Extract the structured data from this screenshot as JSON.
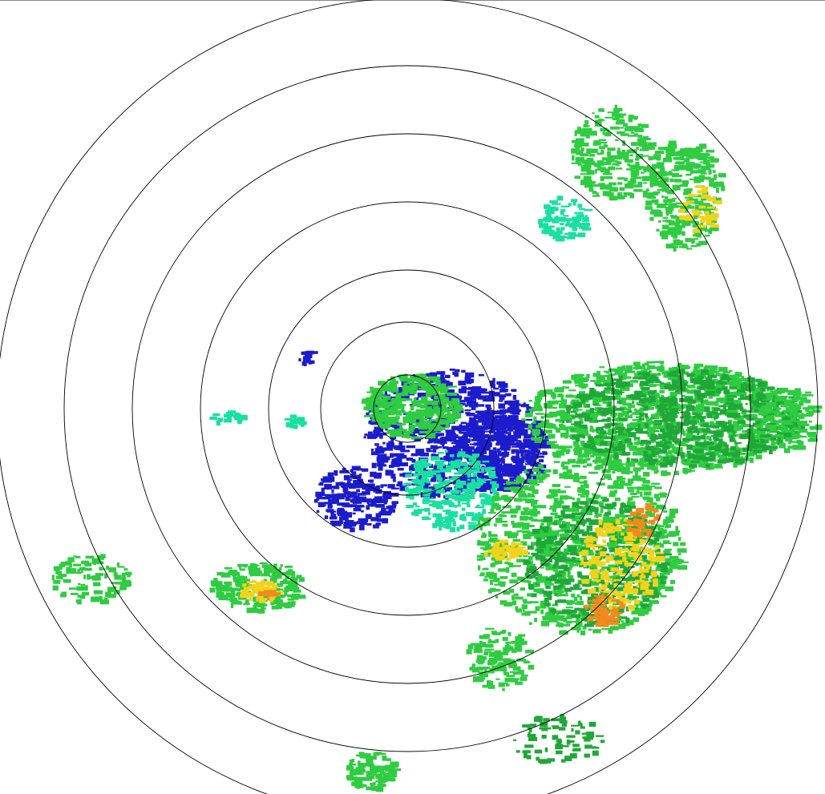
{
  "radar": {
    "range_ring_count": 7,
    "ring_color": "#000000",
    "reflectivity_colors": {
      "weak_blue": "#1c1ccc",
      "light_cyan": "#19e0a0",
      "light_green": "#2ecc40",
      "green": "#1fa838",
      "yellow": "#f2d21c",
      "orange": "#f08a1c",
      "red": "#e02a10"
    }
  }
}
